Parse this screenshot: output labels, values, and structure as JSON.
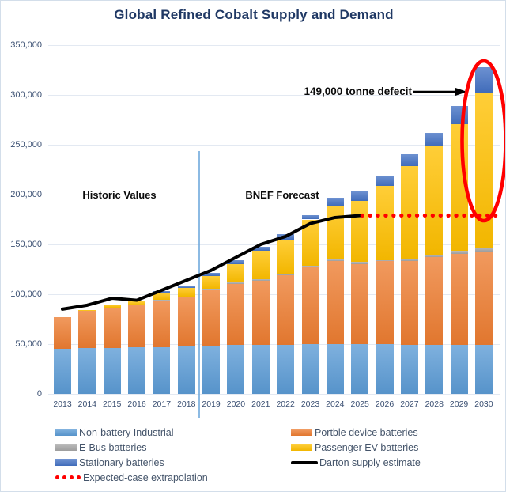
{
  "title": "Global Refined Cobalt Supply and Demand",
  "annotations": {
    "historic_label": "Historic Values",
    "forecast_label": "BNEF Forecast",
    "deficit_label": "149,000 tonne defecit"
  },
  "chart_data": {
    "type": "bar",
    "stacked": true,
    "title": "Global Refined Cobalt Supply and Demand",
    "xlabel": "",
    "ylabel": "",
    "ylim": [
      0,
      350000
    ],
    "y_ticks": [
      0,
      50000,
      100000,
      150000,
      200000,
      250000,
      300000,
      350000
    ],
    "y_tick_labels": [
      "0",
      "50,000",
      "100,000",
      "150,000",
      "200,000",
      "250,000",
      "300,000",
      "350,000"
    ],
    "grid": "horizontal",
    "legend_position": "bottom",
    "categories": [
      "2013",
      "2014",
      "2015",
      "2016",
      "2017",
      "2018",
      "2019",
      "2020",
      "2021",
      "2022",
      "2023",
      "2024",
      "2025",
      "2026",
      "2027",
      "2028",
      "2029",
      "2030"
    ],
    "series": [
      {
        "name": "Non-battery Industrial",
        "color": "#5B9BD5",
        "values": [
          45000,
          46000,
          46000,
          47000,
          47000,
          48000,
          48500,
          49000,
          49000,
          49500,
          50000,
          50000,
          50000,
          50000,
          49500,
          49500,
          49500,
          49500
        ]
      },
      {
        "name": "Portble device batteries",
        "color": "#ED7D31",
        "values": [
          32000,
          37000,
          40500,
          42000,
          46000,
          48500,
          55500,
          61500,
          64500,
          69500,
          77000,
          83500,
          80500,
          83000,
          84000,
          87500,
          91000,
          93500
        ]
      },
      {
        "name": "E-Bus batteries",
        "color": "#A6A6A6",
        "values": [
          0,
          0,
          0,
          0,
          1500,
          1500,
          1500,
          1500,
          1500,
          1500,
          1500,
          1500,
          2000,
          1500,
          2000,
          2500,
          3000,
          3500
        ]
      },
      {
        "name": "Passenger EV batteries",
        "color": "#FFC000",
        "values": [
          0,
          1500,
          3000,
          4000,
          7000,
          8500,
          12500,
          18500,
          28500,
          34500,
          46500,
          53500,
          61000,
          74500,
          93000,
          110000,
          127500,
          155500
        ]
      },
      {
        "name": "Stationary batteries",
        "color": "#4472C4",
        "values": [
          0,
          0,
          0,
          0,
          1500,
          1500,
          3500,
          4000,
          4500,
          5000,
          4000,
          8000,
          9500,
          10000,
          12000,
          12500,
          18000,
          26000
        ]
      }
    ],
    "line_series": [
      {
        "name": "Darton supply estimate",
        "color": "#000000",
        "style": "solid",
        "x": [
          "2013",
          "2014",
          "2015",
          "2016",
          "2017",
          "2018",
          "2019",
          "2020",
          "2021",
          "2022",
          "2023",
          "2024",
          "2025"
        ],
        "values": [
          85000,
          89000,
          96000,
          94000,
          104000,
          114000,
          124000,
          137000,
          150000,
          158000,
          171000,
          177000,
          179000
        ]
      },
      {
        "name": "Expected-case extrapolation",
        "color": "#FF0000",
        "style": "dotted",
        "x": [
          "2025",
          "2030"
        ],
        "values": [
          179000,
          179000
        ]
      }
    ],
    "divider_between": [
      "2018",
      "2019"
    ],
    "highlight_ellipse_category": "2030"
  },
  "legend": {
    "left": [
      {
        "label": "Non-battery Industrial",
        "swatch": "rect",
        "color": "#5B9BD5"
      },
      {
        "label": "E-Bus batteries",
        "swatch": "rect",
        "color": "#A6A6A6"
      },
      {
        "label": "Stationary batteries",
        "swatch": "rect",
        "color": "#4472C4"
      },
      {
        "label": "Expected-case extrapolation",
        "swatch": "dots",
        "color": "#FF0000"
      }
    ],
    "right": [
      {
        "label": "Portble device batteries",
        "swatch": "rect",
        "color": "#ED7D31"
      },
      {
        "label": "Passenger EV batteries",
        "swatch": "rect",
        "color": "#FFC000"
      },
      {
        "label": "Darton supply estimate",
        "swatch": "line",
        "color": "#000000"
      }
    ]
  }
}
